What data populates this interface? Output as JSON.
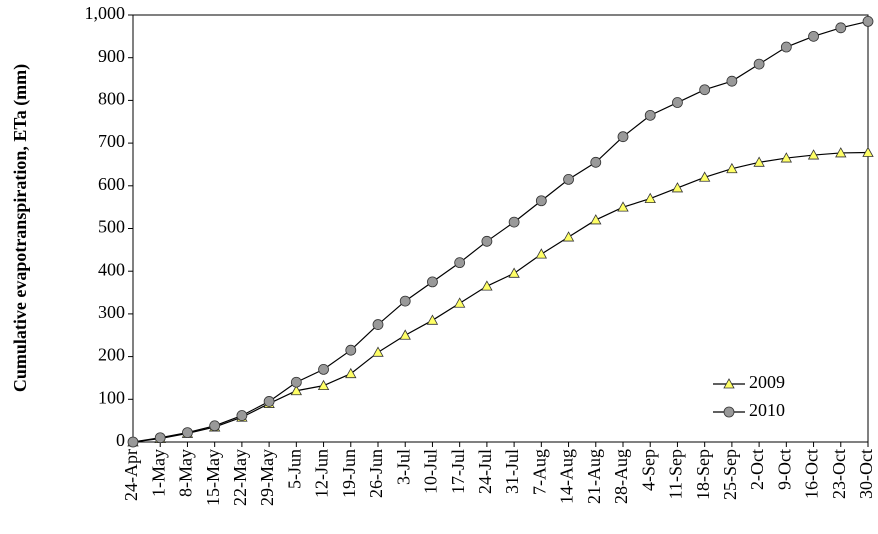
{
  "chart_data": {
    "type": "line",
    "y_label": "Cumulative evapotranspiration, ETa (mm)",
    "categories": [
      "24-Apr",
      "1-May",
      "8-May",
      "15-May",
      "22-May",
      "29-May",
      "5-Jun",
      "12-Jun",
      "19-Jun",
      "26-Jun",
      "3-Jul",
      "10-Jul",
      "17-Jul",
      "24-Jul",
      "31-Jul",
      "7-Aug",
      "14-Aug",
      "21-Aug",
      "28-Aug",
      "4-Sep",
      "11-Sep",
      "18-Sep",
      "25-Sep",
      "2-Oct",
      "9-Oct",
      "16-Oct",
      "23-Oct",
      "30-Oct"
    ],
    "series": [
      {
        "name": "2009",
        "color": "#ffff66",
        "marker": "triangle",
        "values": [
          0,
          8,
          20,
          35,
          58,
          90,
          120,
          132,
          160,
          210,
          250,
          285,
          325,
          365,
          395,
          440,
          480,
          520,
          550,
          570,
          595,
          620,
          640,
          655,
          665,
          672,
          677,
          678
        ]
      },
      {
        "name": "2010",
        "color": "#999999",
        "marker": "circle",
        "values": [
          0,
          10,
          22,
          38,
          62,
          95,
          140,
          170,
          215,
          275,
          330,
          375,
          420,
          470,
          515,
          565,
          615,
          655,
          715,
          765,
          795,
          825,
          845,
          885,
          925,
          950,
          970,
          985
        ]
      }
    ],
    "ylim": [
      0,
      1000
    ],
    "yticks": [
      0,
      100,
      200,
      300,
      400,
      500,
      600,
      700,
      800,
      {
        "value": 900,
        "label": "900"
      },
      {
        "value": 1000,
        "label": "1,000"
      }
    ],
    "legend": "lower-right"
  }
}
